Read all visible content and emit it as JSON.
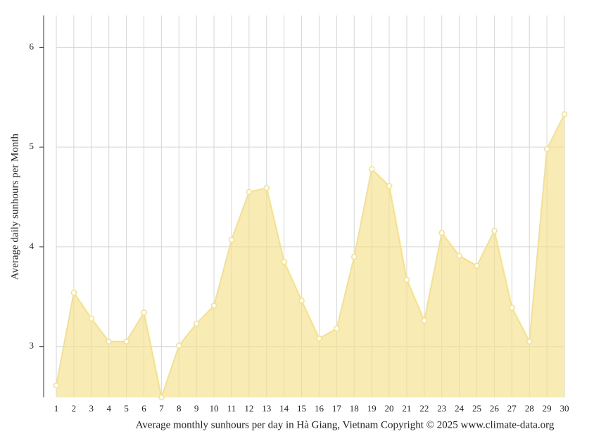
{
  "chart_data": {
    "type": "area",
    "title": "Average monthly sunhours per day in Hà Giang, Vietnam Copyright © 2025 www.climate-data.org",
    "y_label": "Average daily sunhours per Month",
    "x": [
      1,
      2,
      3,
      4,
      5,
      6,
      7,
      8,
      9,
      10,
      11,
      12,
      13,
      14,
      15,
      16,
      17,
      18,
      19,
      20,
      21,
      22,
      23,
      24,
      25,
      26,
      27,
      28,
      29,
      30
    ],
    "series": [
      {
        "name": "Sunhours",
        "color": "#f5e08c",
        "values": [
          2.61,
          3.54,
          3.28,
          3.05,
          3.05,
          3.34,
          2.49,
          3.01,
          3.23,
          3.41,
          4.07,
          4.55,
          4.59,
          3.85,
          3.46,
          3.08,
          3.18,
          3.9,
          4.78,
          4.61,
          3.67,
          3.26,
          4.14,
          3.91,
          3.81,
          4.16,
          3.39,
          3.05,
          4.98,
          5.33
        ]
      }
    ],
    "xlim": [
      1,
      30
    ],
    "ylim": [
      2.49,
      6.32
    ],
    "yticks": [
      3,
      4,
      5,
      6
    ],
    "grid": true
  }
}
